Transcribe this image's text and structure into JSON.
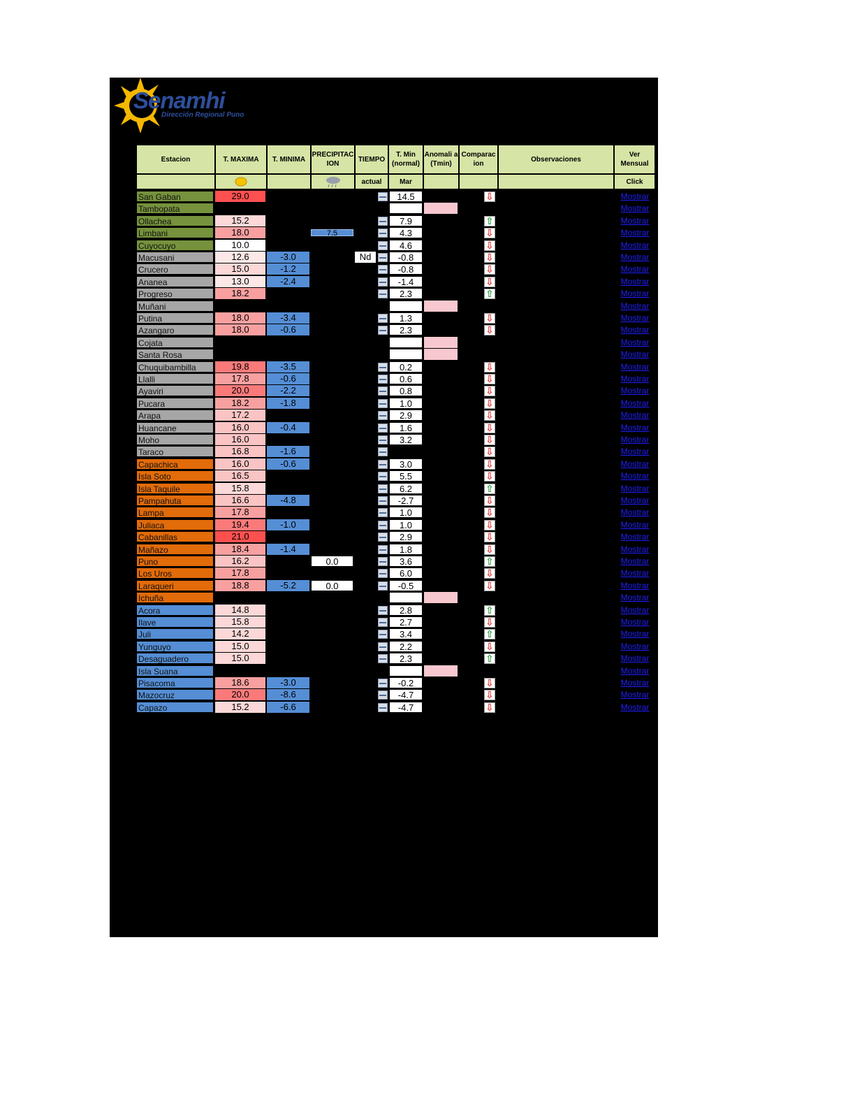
{
  "logo": {
    "brand": "Senamhi",
    "subtitle": "Dirección Regional Puno"
  },
  "headers": {
    "estacion": "Estacion",
    "tmax": "T. MAXIMA",
    "tmin": "T. MINIMA",
    "precip": "PRECIPITAC ION",
    "tiempo": "TIEMPO",
    "tmin_normal": "T. Min (normal)",
    "anomalia": "Anomali a (Tmin)",
    "comparacion": "Comparac ion",
    "observaciones": "Observaciones",
    "ver_mensual": "Ver Mensual"
  },
  "subheaders": {
    "tiempo": "actual",
    "tmin_normal": "Mar",
    "ver_mensual": "Click"
  },
  "icons": {
    "tmax": "sun-icon",
    "precip": "rain-cloud-icon",
    "up": "arrow-up-icon",
    "down": "arrow-down-icon"
  },
  "colors": {
    "green": "#76923c",
    "gray": "#a6a6a6",
    "orange": "#e26b0a",
    "blue": "#558ed5"
  },
  "link_label": "Mostrar",
  "stations": [
    {
      "name": "San Gaban",
      "group": "green",
      "tmax": "29.0",
      "tmin": "",
      "precip": "",
      "tiempo": true,
      "tnorm": "14.5",
      "anom": false,
      "cmp": "down"
    },
    {
      "name": "Tambopata",
      "group": "green",
      "tmax": "",
      "tmin": "",
      "precip": "",
      "tiempo": false,
      "tnorm": "",
      "anom": true,
      "cmp": ""
    },
    {
      "name": "Ollachea",
      "group": "green",
      "tmax": "15.2",
      "tmin": "",
      "precip": "",
      "tiempo": true,
      "tnorm": "7.9",
      "anom": false,
      "cmp": "up"
    },
    {
      "name": "Limbani",
      "group": "green",
      "tmax": "18.0",
      "tmin": "",
      "precip": "7.5",
      "precip_style": "bar",
      "tiempo": true,
      "tnorm": "4.3",
      "anom": false,
      "cmp": "down"
    },
    {
      "name": "Cuyocuyo",
      "group": "green",
      "tmax": "10.0",
      "tmin": "",
      "precip": "",
      "tiempo": true,
      "tnorm": "4.6",
      "anom": false,
      "cmp": "down"
    },
    {
      "name": "Macusani",
      "group": "gray",
      "tmax": "12.6",
      "tmin": "-3.0",
      "precip": "",
      "nd": "Nd",
      "tiempo": true,
      "tnorm": "-0.8",
      "anom": false,
      "cmp": "down"
    },
    {
      "name": "Crucero",
      "group": "gray",
      "tmax": "15.0",
      "tmin": "-1.2",
      "precip": "",
      "tiempo": true,
      "tnorm": "-0.8",
      "anom": false,
      "cmp": "down"
    },
    {
      "name": "Ananea",
      "group": "gray",
      "tmax": "13.0",
      "tmin": "-2.4",
      "precip": "",
      "tiempo": true,
      "tnorm": "-1.4",
      "anom": false,
      "cmp": "down"
    },
    {
      "name": "Progreso",
      "group": "gray",
      "tmax": "18.2",
      "tmin": "",
      "precip": "",
      "tiempo": true,
      "tnorm": "2.3",
      "anom": false,
      "cmp": "up"
    },
    {
      "name": "Muñani",
      "group": "gray",
      "tmax": "",
      "tmin": "",
      "precip": "",
      "tiempo": false,
      "tnorm": "",
      "anom": true,
      "cmp": ""
    },
    {
      "name": "Putina",
      "group": "gray",
      "tmax": "18.0",
      "tmin": "-3.4",
      "precip": "",
      "tiempo": true,
      "tnorm": "1.3",
      "anom": false,
      "cmp": "down"
    },
    {
      "name": "Azangaro",
      "group": "gray",
      "tmax": "18.0",
      "tmin": "-0.6",
      "precip": "",
      "tiempo": true,
      "tnorm": "2.3",
      "anom": false,
      "cmp": "down"
    },
    {
      "name": "Cojata",
      "group": "gray",
      "tmax": "",
      "tmin": "",
      "precip": "",
      "tiempo": false,
      "tnorm": "",
      "anom": true,
      "cmp": ""
    },
    {
      "name": "Santa Rosa",
      "group": "gray",
      "tmax": "",
      "tmin": "",
      "precip": "",
      "tiempo": false,
      "tnorm": "",
      "anom": true,
      "cmp": ""
    },
    {
      "name": "Chuquibambilla",
      "group": "gray",
      "tmax": "19.8",
      "tmin": "-3.5",
      "precip": "",
      "tiempo": true,
      "tnorm": "0.2",
      "anom": false,
      "cmp": "down"
    },
    {
      "name": "Llalli",
      "group": "gray",
      "tmax": "17.8",
      "tmin": "-0.6",
      "precip": "",
      "tiempo": true,
      "tnorm": "0.6",
      "anom": false,
      "cmp": "down"
    },
    {
      "name": "Ayaviri",
      "group": "gray",
      "tmax": "20.0",
      "tmin": "-2.2",
      "precip": "",
      "tiempo": true,
      "tnorm": "0.8",
      "anom": false,
      "cmp": "down"
    },
    {
      "name": "Pucara",
      "group": "gray",
      "tmax": "18.2",
      "tmin": "-1.8",
      "precip": "",
      "tiempo": true,
      "tnorm": "1.0",
      "anom": false,
      "cmp": "down"
    },
    {
      "name": "Arapa",
      "group": "gray",
      "tmax": "17.2",
      "tmin": "",
      "precip": "",
      "tiempo": true,
      "tnorm": "2.9",
      "anom": false,
      "cmp": "down"
    },
    {
      "name": "Huancane",
      "group": "gray",
      "tmax": "16.0",
      "tmin": "-0.4",
      "precip": "",
      "tiempo": true,
      "tnorm": "1.6",
      "anom": false,
      "cmp": "down"
    },
    {
      "name": "Moho",
      "group": "gray",
      "tmax": "16.0",
      "tmin": "",
      "precip": "",
      "tiempo": true,
      "tnorm": "3.2",
      "anom": false,
      "cmp": "down"
    },
    {
      "name": "Taraco",
      "group": "gray",
      "tmax": "16.8",
      "tmin": "-1.6",
      "precip": "",
      "tiempo": true,
      "tnorm": "",
      "anom": false,
      "cmp": "down"
    },
    {
      "name": "Capachica",
      "group": "orange",
      "tmax": "16.0",
      "tmin": "-0.6",
      "precip": "",
      "tiempo": true,
      "tnorm": "3.0",
      "anom": false,
      "cmp": "down"
    },
    {
      "name": "Isla Soto",
      "group": "orange",
      "tmax": "16.5",
      "tmin": "",
      "precip": "",
      "tiempo": true,
      "tnorm": "5.5",
      "anom": false,
      "cmp": "down"
    },
    {
      "name": "Isla Taquile",
      "group": "orange",
      "tmax": "15.8",
      "tmin": "",
      "precip": "",
      "tiempo": true,
      "tnorm": "6.2",
      "anom": false,
      "cmp": "up"
    },
    {
      "name": "Pampahuta",
      "group": "orange",
      "tmax": "16.6",
      "tmin": "-4.8",
      "precip": "",
      "tiempo": true,
      "tnorm": "-2.7",
      "anom": false,
      "cmp": "down"
    },
    {
      "name": "Lampa",
      "group": "orange",
      "tmax": "17.8",
      "tmin": "",
      "precip": "",
      "tiempo": true,
      "tnorm": "1.0",
      "anom": false,
      "cmp": "down"
    },
    {
      "name": "Juliaca",
      "group": "orange",
      "tmax": "19.4",
      "tmin": "-1.0",
      "precip": "",
      "tiempo": true,
      "tnorm": "1.0",
      "anom": false,
      "cmp": "down"
    },
    {
      "name": "Cabanillas",
      "group": "orange",
      "tmax": "21.0",
      "tmin": "",
      "precip": "",
      "tiempo": true,
      "tnorm": "2.9",
      "anom": false,
      "cmp": "down"
    },
    {
      "name": "Mañazo",
      "group": "orange",
      "tmax": "18.4",
      "tmin": "-1.4",
      "precip": "",
      "tiempo": true,
      "tnorm": "1.8",
      "anom": false,
      "cmp": "down"
    },
    {
      "name": "Puno",
      "group": "orange",
      "tmax": "16.2",
      "tmin": "",
      "precip": "0.0",
      "precip_style": "box",
      "tiempo": true,
      "tnorm": "3.6",
      "anom": false,
      "cmp": "up"
    },
    {
      "name": "Los Uros",
      "group": "orange",
      "tmax": "17.8",
      "tmin": "",
      "precip": "",
      "tiempo": true,
      "tnorm": "6.0",
      "anom": false,
      "cmp": "down"
    },
    {
      "name": "Laraqueri",
      "group": "orange",
      "tmax": "18.8",
      "tmin": "-5.2",
      "precip": "0.0",
      "precip_style": "box",
      "tiempo": true,
      "tnorm": "-0.5",
      "anom": false,
      "cmp": "down"
    },
    {
      "name": "Ichuña",
      "group": "orange",
      "tmax": "",
      "tmin": "",
      "precip": "",
      "tiempo": false,
      "tnorm": "",
      "anom": true,
      "cmp": ""
    },
    {
      "name": "Acora",
      "group": "blue",
      "tmax": "14.8",
      "tmin": "",
      "precip": "",
      "tiempo": true,
      "tnorm": "2.8",
      "anom": false,
      "cmp": "up"
    },
    {
      "name": "Ilave",
      "group": "blue",
      "tmax": "15.8",
      "tmin": "",
      "precip": "",
      "tiempo": true,
      "tnorm": "2.7",
      "anom": false,
      "cmp": "down"
    },
    {
      "name": "Juli",
      "group": "blue",
      "tmax": "14.2",
      "tmin": "",
      "precip": "",
      "tiempo": true,
      "tnorm": "3.4",
      "anom": false,
      "cmp": "up"
    },
    {
      "name": "Yunguyo",
      "group": "blue",
      "tmax": "15.0",
      "tmin": "",
      "precip": "",
      "tiempo": true,
      "tnorm": "2.2",
      "anom": false,
      "cmp": "down"
    },
    {
      "name": "Desaguadero",
      "group": "blue",
      "tmax": "15.0",
      "tmin": "",
      "precip": "",
      "tiempo": true,
      "tnorm": "2.3",
      "anom": false,
      "cmp": "up"
    },
    {
      "name": "Isla Suana",
      "group": "blue",
      "tmax": "",
      "tmin": "",
      "precip": "",
      "tiempo": false,
      "tnorm": "",
      "anom": true,
      "cmp": ""
    },
    {
      "name": "Pisacoma",
      "group": "blue",
      "tmax": "18.6",
      "tmin": "-3.0",
      "precip": "",
      "tiempo": true,
      "tnorm": "-0.2",
      "anom": false,
      "cmp": "down"
    },
    {
      "name": "Mazocruz",
      "group": "blue",
      "tmax": "20.0",
      "tmin": "-8.6",
      "precip": "",
      "tiempo": true,
      "tnorm": "-4.7",
      "anom": false,
      "cmp": "down"
    },
    {
      "name": "Capazo",
      "group": "blue",
      "tmax": "15.2",
      "tmin": "-6.6",
      "precip": "",
      "tiempo": true,
      "tnorm": "-4.7",
      "anom": false,
      "cmp": "down"
    }
  ]
}
